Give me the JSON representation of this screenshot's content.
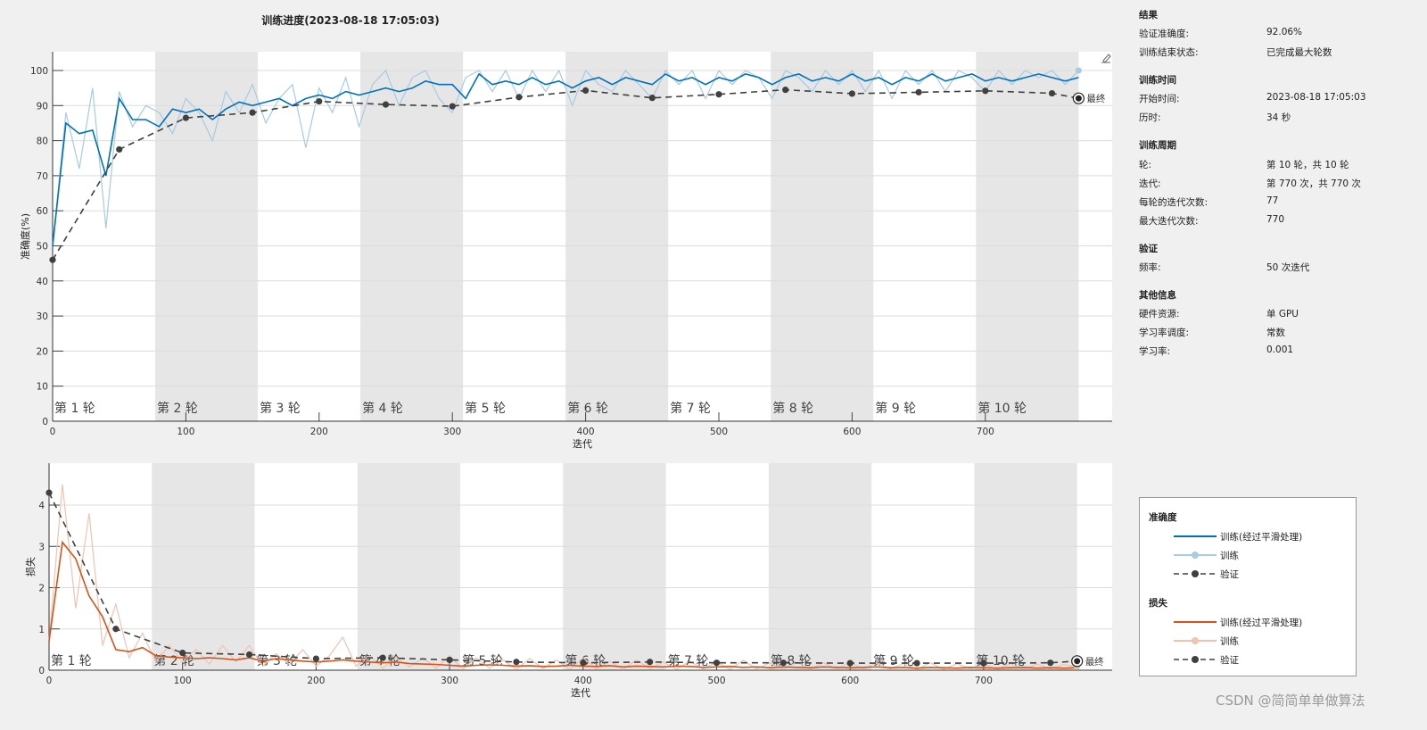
{
  "title": "训练进度(2023-08-18 17:05:03)",
  "info": {
    "sections": [
      {
        "header": "结果",
        "rows": [
          {
            "label": "验证准确度:",
            "value": "92.06%"
          },
          {
            "label": "训练结束状态:",
            "value": "已完成最大轮数"
          }
        ]
      },
      {
        "header": "训练时间",
        "rows": [
          {
            "label": "开始时间:",
            "value": "2023-08-18 17:05:03"
          },
          {
            "label": "历时:",
            "value": "34 秒"
          }
        ]
      },
      {
        "header": "训练周期",
        "rows": [
          {
            "label": "轮:",
            "value": "第 10 轮，共 10 轮"
          },
          {
            "label": "迭代:",
            "value": "第 770 次，共 770 次"
          },
          {
            "label": "每轮的迭代次数:",
            "value": "77"
          },
          {
            "label": "最大迭代次数:",
            "value": "770"
          }
        ]
      },
      {
        "header": "验证",
        "rows": [
          {
            "label": "频率:",
            "value": "50 次迭代"
          }
        ]
      },
      {
        "header": "其他信息",
        "rows": [
          {
            "label": "硬件资源:",
            "value": "单 GPU"
          },
          {
            "label": "学习率调度:",
            "value": "常数"
          },
          {
            "label": "学习率:",
            "value": "0.001"
          }
        ]
      }
    ]
  },
  "legend": {
    "groups": [
      {
        "header": "准确度",
        "items": [
          {
            "label": "训练(经过平滑处理)",
            "color": "#0072bd",
            "style": "solid"
          },
          {
            "label": "训练",
            "color": "#a6cbe3",
            "style": "marker"
          },
          {
            "label": "验证",
            "color": "#404040",
            "style": "dashed-marker"
          }
        ]
      },
      {
        "header": "损失",
        "items": [
          {
            "label": "训练(经过平滑处理)",
            "color": "#d95319",
            "style": "solid"
          },
          {
            "label": "训练",
            "color": "#eec3b0",
            "style": "marker"
          },
          {
            "label": "验证",
            "color": "#404040",
            "style": "dashed-marker"
          }
        ]
      }
    ]
  },
  "watermark": "CSDN @简简单单做算法",
  "chart_data": [
    {
      "type": "line",
      "ylabel": "准确度(%)",
      "xlabel": "迭代",
      "ylim": [
        0,
        105
      ],
      "xlim": [
        0,
        796
      ],
      "yticks": [
        0,
        10,
        20,
        30,
        40,
        50,
        60,
        70,
        80,
        90,
        100
      ],
      "xticks": [
        0,
        100,
        200,
        300,
        400,
        500,
        600,
        700
      ],
      "epochs": [
        "第 1 轮",
        "第 2 轮",
        "第 3 轮",
        "第 4 轮",
        "第 5 轮",
        "第 6 轮",
        "第 7 轮",
        "第 8 轮",
        "第 9 轮",
        "第 10 轮"
      ],
      "iterations_per_epoch": 77,
      "final_label": "最终",
      "grid": true,
      "train_x_step": 10,
      "train_smoothed": [
        50,
        85,
        82,
        83,
        70,
        92,
        86,
        86,
        84,
        89,
        88,
        89,
        86,
        89,
        91,
        90,
        91,
        92,
        90,
        92,
        93,
        92,
        94,
        93,
        94,
        95,
        94,
        95,
        97,
        96,
        96,
        92,
        99,
        96,
        97,
        96,
        98,
        96,
        97,
        95,
        97,
        98,
        96,
        98,
        97,
        96,
        99,
        97,
        98,
        96,
        98,
        97,
        99,
        98,
        96,
        98,
        99,
        97,
        98,
        97,
        99,
        97,
        98,
        96,
        98,
        97,
        99,
        97,
        98,
        99,
        97,
        98,
        97,
        98,
        99,
        98,
        97,
        98
      ],
      "train": [
        50,
        88,
        72,
        95,
        55,
        94,
        84,
        90,
        88,
        82,
        92,
        88,
        80,
        94,
        88,
        96,
        85,
        92,
        96,
        78,
        95,
        88,
        98,
        84,
        96,
        100,
        90,
        98,
        100,
        92,
        88,
        98,
        100,
        94,
        100,
        92,
        100,
        94,
        100,
        90,
        100,
        96,
        94,
        100,
        96,
        92,
        100,
        96,
        100,
        92,
        100,
        96,
        100,
        98,
        92,
        100,
        98,
        94,
        100,
        96,
        100,
        94,
        100,
        92,
        100,
        96,
        100,
        94,
        100,
        98,
        94,
        100,
        96,
        100,
        98,
        100,
        96,
        100
      ],
      "validation_x": [
        0,
        50,
        100,
        150,
        200,
        250,
        300,
        350,
        400,
        450,
        500,
        550,
        600,
        650,
        700,
        750,
        770
      ],
      "validation": [
        46,
        77.5,
        86.5,
        88,
        91.2,
        90.3,
        89.8,
        92.4,
        94.3,
        92.2,
        93.2,
        94.5,
        93.4,
        93.8,
        94.2,
        93.5,
        92.06
      ]
    },
    {
      "type": "line",
      "ylabel": "损失",
      "xlabel": "迭代",
      "ylim": [
        0,
        5.0
      ],
      "xlim": [
        0,
        796
      ],
      "yticks": [
        0,
        1,
        2,
        3,
        4
      ],
      "xticks": [
        0,
        100,
        200,
        300,
        400,
        500,
        600,
        700
      ],
      "epochs": [
        "第 1 轮",
        "第 2 轮",
        "第 3 轮",
        "第 4 轮",
        "第 5 轮",
        "第 6 轮",
        "第 7 轮",
        "第 8 轮",
        "第 9 轮",
        "第 10 轮"
      ],
      "iterations_per_epoch": 77,
      "final_label": "最终",
      "grid": true,
      "train_x_step": 10,
      "train_smoothed": [
        0.7,
        3.1,
        2.7,
        1.8,
        1.3,
        0.5,
        0.45,
        0.55,
        0.35,
        0.32,
        0.3,
        0.28,
        0.3,
        0.28,
        0.25,
        0.3,
        0.22,
        0.28,
        0.25,
        0.22,
        0.2,
        0.22,
        0.25,
        0.22,
        0.2,
        0.18,
        0.2,
        0.16,
        0.15,
        0.14,
        0.12,
        0.1,
        0.12,
        0.13,
        0.12,
        0.1,
        0.11,
        0.09,
        0.1,
        0.12,
        0.1,
        0.09,
        0.11,
        0.08,
        0.1,
        0.09,
        0.08,
        0.1,
        0.09,
        0.07,
        0.08,
        0.09,
        0.07,
        0.08,
        0.06,
        0.08,
        0.07,
        0.06,
        0.08,
        0.07,
        0.06,
        0.07,
        0.08,
        0.06,
        0.07,
        0.05,
        0.07,
        0.06,
        0.05,
        0.07,
        0.06,
        0.05,
        0.06,
        0.07,
        0.05,
        0.06,
        0.05,
        0.06
      ],
      "train": [
        0.7,
        4.5,
        1.5,
        3.8,
        0.6,
        1.6,
        0.3,
        0.9,
        0.2,
        0.6,
        0.2,
        0.5,
        0.15,
        0.6,
        0.2,
        0.6,
        0.1,
        0.4,
        0.15,
        0.5,
        0.1,
        0.35,
        0.8,
        0.1,
        0.35,
        0.05,
        0.3,
        0.08,
        0.3,
        0.05,
        0.35,
        0.02,
        0.3,
        0.05,
        0.25,
        0.02,
        0.28,
        0.04,
        0.25,
        0.02,
        0.3,
        0.03,
        0.22,
        0.02,
        0.25,
        0.03,
        0.2,
        0.02,
        0.22,
        0.03,
        0.2,
        0.02,
        0.24,
        0.03,
        0.18,
        0.02,
        0.2,
        0.03,
        0.18,
        0.02,
        0.2,
        0.02,
        0.18,
        0.03,
        0.16,
        0.02,
        0.18,
        0.02,
        0.16,
        0.03,
        0.15,
        0.02,
        0.16,
        0.02,
        0.15,
        0.03,
        0.14,
        0.08
      ],
      "validation_x": [
        0,
        50,
        100,
        150,
        200,
        250,
        300,
        350,
        400,
        450,
        500,
        550,
        600,
        650,
        700,
        750,
        770
      ],
      "validation": [
        4.3,
        1.0,
        0.42,
        0.38,
        0.28,
        0.3,
        0.25,
        0.2,
        0.18,
        0.2,
        0.18,
        0.18,
        0.17,
        0.17,
        0.17,
        0.18,
        0.22
      ]
    }
  ]
}
